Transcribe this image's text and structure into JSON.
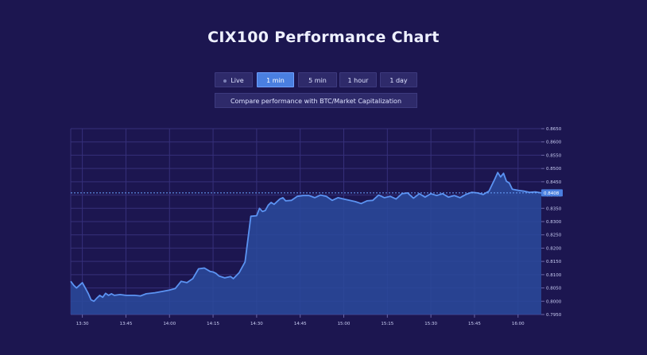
{
  "title": "CIX100 Performance Chart",
  "buttons": {
    "live": "Live",
    "one_min": "1 min",
    "five_min": "5 min",
    "one_hour": "1 hour",
    "one_day": "1 day",
    "compare": "Compare performance with BTC/Market Capitalization"
  },
  "colors": {
    "background": "#1c1650",
    "line": "#5b93f2",
    "fill": "#2a4a9c",
    "grid": "#36307a",
    "active_button": "#4a7fe0"
  },
  "chart_data": {
    "type": "area",
    "grid": true,
    "current_value": "0.8408",
    "x_tick_labels": [
      "13:30",
      "13:45",
      "14:00",
      "14:15",
      "14:30",
      "14:45",
      "15:00",
      "15:15",
      "15:30",
      "15:45",
      "16:00"
    ],
    "y_tick_labels": [
      "0.8650",
      "0.8600",
      "0.8550",
      "0.8500",
      "0.8450",
      "0.8400",
      "0.8350",
      "0.8300",
      "0.8250",
      "0.8200",
      "0.8150",
      "0.8100",
      "0.8050",
      "0.8000",
      "0.7950"
    ],
    "ylim": [
      0.795,
      0.865
    ],
    "xlim": [
      "13:26",
      "16:08"
    ],
    "x": [
      "13:26",
      "13:27",
      "13:28",
      "13:29",
      "13:30",
      "13:31",
      "13:32",
      "13:33",
      "13:34",
      "13:35",
      "13:36",
      "13:37",
      "13:38",
      "13:39",
      "13:40",
      "13:41",
      "13:43",
      "13:45",
      "13:48",
      "13:50",
      "13:52",
      "13:55",
      "13:58",
      "14:00",
      "14:02",
      "14:04",
      "14:06",
      "14:08",
      "14:10",
      "14:12",
      "14:14",
      "14:15",
      "14:16",
      "14:17",
      "14:19",
      "14:21",
      "14:22",
      "14:24",
      "14:26",
      "14:28",
      "14:30",
      "14:31",
      "14:32",
      "14:33",
      "14:34",
      "14:35",
      "14:36",
      "14:38",
      "14:39",
      "14:40",
      "14:42",
      "14:44",
      "14:46",
      "14:48",
      "14:50",
      "14:52",
      "14:54",
      "14:56",
      "14:58",
      "15:00",
      "15:02",
      "15:04",
      "15:06",
      "15:08",
      "15:10",
      "15:12",
      "15:14",
      "15:16",
      "15:18",
      "15:20",
      "15:22",
      "15:24",
      "15:26",
      "15:28",
      "15:30",
      "15:32",
      "15:34",
      "15:36",
      "15:38",
      "15:40",
      "15:42",
      "15:44",
      "15:46",
      "15:48",
      "15:50",
      "15:52",
      "15:53",
      "15:54",
      "15:55",
      "15:56",
      "15:57",
      "15:58",
      "16:00",
      "16:02",
      "16:04",
      "16:06",
      "16:08"
    ],
    "values": [
      0.8075,
      0.806,
      0.805,
      0.806,
      0.807,
      0.805,
      0.803,
      0.8005,
      0.8,
      0.8012,
      0.8022,
      0.8015,
      0.803,
      0.8022,
      0.8028,
      0.8022,
      0.8025,
      0.8022,
      0.8022,
      0.802,
      0.8028,
      0.8032,
      0.8038,
      0.8042,
      0.8048,
      0.8075,
      0.807,
      0.8085,
      0.8122,
      0.8125,
      0.8112,
      0.811,
      0.8105,
      0.8095,
      0.8088,
      0.8093,
      0.8085,
      0.8108,
      0.8148,
      0.832,
      0.8322,
      0.835,
      0.8338,
      0.8342,
      0.8362,
      0.8372,
      0.8365,
      0.8385,
      0.839,
      0.8378,
      0.838,
      0.8395,
      0.8398,
      0.8398,
      0.839,
      0.84,
      0.8395,
      0.838,
      0.839,
      0.8385,
      0.838,
      0.8375,
      0.8368,
      0.8378,
      0.838,
      0.84,
      0.839,
      0.8395,
      0.8385,
      0.8405,
      0.8408,
      0.8388,
      0.8405,
      0.8392,
      0.8405,
      0.8398,
      0.8405,
      0.8392,
      0.8398,
      0.839,
      0.8402,
      0.841,
      0.8408,
      0.8402,
      0.8415,
      0.846,
      0.8485,
      0.8468,
      0.8482,
      0.8452,
      0.8445,
      0.8422,
      0.8418,
      0.8415,
      0.841,
      0.8412,
      0.8408
    ]
  }
}
